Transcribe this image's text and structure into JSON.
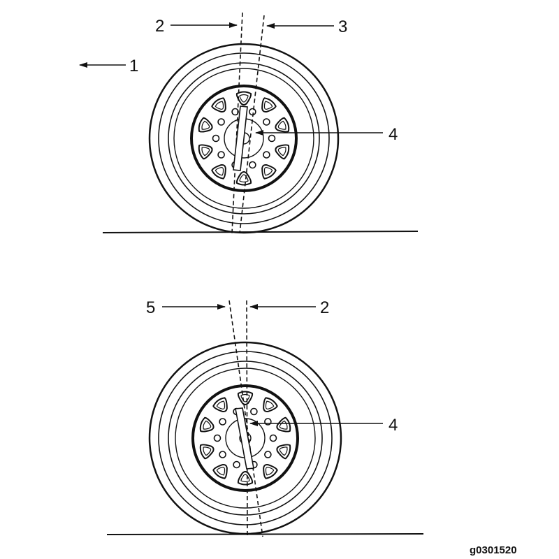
{
  "callouts": {
    "top_forward": "1",
    "top_vertical": "2",
    "top_tilted": "3",
    "top_hub": "4",
    "bottom_tilted": "5",
    "bottom_vertical": "2",
    "bottom_hub": "4"
  },
  "figure_id": "g0301520",
  "colors": {
    "ink": "#111111",
    "paper": "#ffffff"
  }
}
